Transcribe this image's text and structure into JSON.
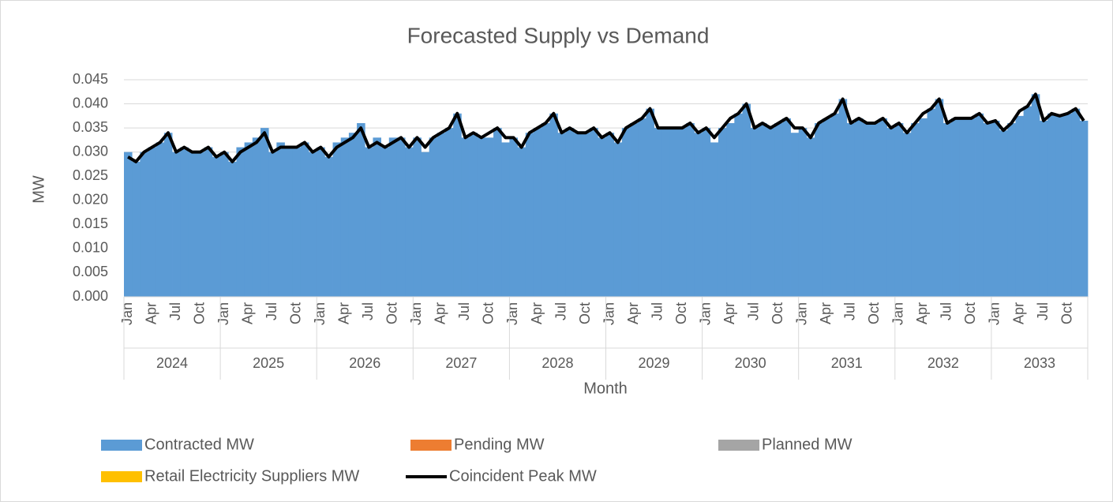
{
  "chart_data": {
    "type": "area-line",
    "title": "Forecasted Supply vs Demand",
    "y_label": "MW",
    "x_label": "Month",
    "categories": [
      "Jan",
      null,
      null,
      "Apr",
      null,
      null,
      "Jul",
      null,
      null,
      "Oct",
      null,
      null,
      "Jan",
      null,
      null,
      "Apr",
      null,
      null,
      "Jul",
      null,
      null,
      "Oct",
      null,
      null,
      "Jan",
      null,
      null,
      "Apr",
      null,
      null,
      "Jul",
      null,
      null,
      "Oct",
      null,
      null,
      "Jan",
      null,
      null,
      "Apr",
      null,
      null,
      "Jul",
      null,
      null,
      "Oct",
      null,
      null,
      "Jan",
      null,
      null,
      "Apr",
      null,
      null,
      "Jul",
      null,
      null,
      "Oct",
      null,
      null,
      "Jan",
      null,
      null,
      "Apr",
      null,
      null,
      "Jul",
      null,
      null,
      "Oct",
      null,
      null,
      "Jan",
      null,
      null,
      "Apr",
      null,
      null,
      "Jul",
      null,
      null,
      "Oct",
      null,
      null,
      "Jan",
      null,
      null,
      "Apr",
      null,
      null,
      "Jul",
      null,
      null,
      "Oct",
      null,
      null,
      "Jan",
      null,
      null,
      "Apr",
      null,
      null,
      "Jul",
      null,
      null,
      "Oct",
      null,
      null,
      "Jan",
      null,
      null,
      "Apr",
      null,
      null,
      "Jul",
      null,
      null,
      "Oct",
      null,
      null
    ],
    "years": [
      "2024",
      "2025",
      "2026",
      "2027",
      "2028",
      "2029",
      "2030",
      "2031",
      "2032",
      "2033"
    ],
    "series": [
      {
        "name": "Contracted MW",
        "color": "#5b9bd5",
        "kind": "area",
        "values": [
          0.03,
          0.028,
          0.03,
          0.031,
          0.032,
          0.034,
          0.03,
          0.031,
          0.03,
          0.03,
          0.031,
          0.029,
          0.03,
          0.028,
          0.031,
          0.032,
          0.033,
          0.035,
          0.03,
          0.032,
          0.031,
          0.031,
          0.032,
          0.03,
          0.031,
          0.029,
          0.032,
          0.033,
          0.034,
          0.036,
          0.031,
          0.033,
          0.031,
          0.033,
          0.033,
          0.031,
          0.033,
          0.03,
          0.033,
          0.034,
          0.035,
          0.038,
          0.033,
          0.034,
          0.033,
          0.033,
          0.035,
          0.032,
          0.033,
          0.031,
          0.034,
          0.035,
          0.036,
          0.038,
          0.034,
          0.035,
          0.034,
          0.034,
          0.035,
          0.033,
          0.034,
          0.032,
          0.035,
          0.036,
          0.037,
          0.039,
          0.035,
          0.035,
          0.035,
          0.035,
          0.036,
          0.034,
          0.035,
          0.032,
          0.035,
          0.036,
          0.038,
          0.04,
          0.035,
          0.036,
          0.035,
          0.036,
          0.037,
          0.034,
          0.035,
          0.033,
          0.036,
          0.037,
          0.038,
          0.041,
          0.036,
          0.037,
          0.036,
          0.036,
          0.037,
          0.035,
          0.036,
          0.034,
          0.036,
          0.037,
          0.039,
          0.041,
          0.036,
          0.037,
          0.037,
          0.037,
          0.038,
          0.036,
          0.0365,
          0.0345,
          0.036,
          0.0375,
          0.0395,
          0.042,
          0.0365,
          0.038,
          0.0375,
          0.038,
          0.039,
          0.0365
        ]
      },
      {
        "name": "Pending MW",
        "color": "#ed7d31",
        "kind": "area"
      },
      {
        "name": "Planned MW",
        "color": "#a5a5a5",
        "kind": "area"
      },
      {
        "name": "Retail Electricity Suppliers MW",
        "color": "#ffc000",
        "kind": "area"
      },
      {
        "name": "Coincident Peak MW",
        "color": "#000000",
        "kind": "line",
        "values": [
          0.029,
          0.028,
          0.03,
          0.031,
          0.032,
          0.034,
          0.03,
          0.031,
          0.03,
          0.03,
          0.031,
          0.029,
          0.03,
          0.028,
          0.03,
          0.031,
          0.032,
          0.034,
          0.03,
          0.031,
          0.031,
          0.031,
          0.032,
          0.03,
          0.031,
          0.029,
          0.031,
          0.032,
          0.033,
          0.035,
          0.031,
          0.032,
          0.031,
          0.032,
          0.033,
          0.031,
          0.033,
          0.031,
          0.033,
          0.034,
          0.035,
          0.038,
          0.033,
          0.034,
          0.033,
          0.034,
          0.035,
          0.033,
          0.033,
          0.031,
          0.034,
          0.035,
          0.036,
          0.038,
          0.034,
          0.035,
          0.034,
          0.034,
          0.035,
          0.033,
          0.034,
          0.032,
          0.035,
          0.036,
          0.037,
          0.039,
          0.035,
          0.035,
          0.035,
          0.035,
          0.036,
          0.034,
          0.035,
          0.033,
          0.035,
          0.037,
          0.038,
          0.04,
          0.035,
          0.036,
          0.035,
          0.036,
          0.037,
          0.035,
          0.035,
          0.033,
          0.036,
          0.037,
          0.038,
          0.041,
          0.036,
          0.037,
          0.036,
          0.036,
          0.037,
          0.035,
          0.036,
          0.034,
          0.036,
          0.038,
          0.039,
          0.041,
          0.036,
          0.037,
          0.037,
          0.037,
          0.038,
          0.036,
          0.0365,
          0.0345,
          0.036,
          0.0385,
          0.0395,
          0.042,
          0.0365,
          0.038,
          0.0375,
          0.038,
          0.039,
          0.0365
        ]
      }
    ],
    "ylim": [
      0,
      0.045
    ],
    "yticks": [
      {
        "value": 0,
        "label": "0.000"
      },
      0.005,
      {
        "value": 0.01,
        "label": "0.010"
      },
      0.015,
      {
        "value": 0.02,
        "label": "0.020"
      },
      0.025,
      {
        "value": 0.03,
        "label": "0.030"
      },
      0.035,
      {
        "value": 0.04,
        "label": "0.040"
      },
      0.045
    ],
    "grid": true,
    "legend": "bottom"
  }
}
